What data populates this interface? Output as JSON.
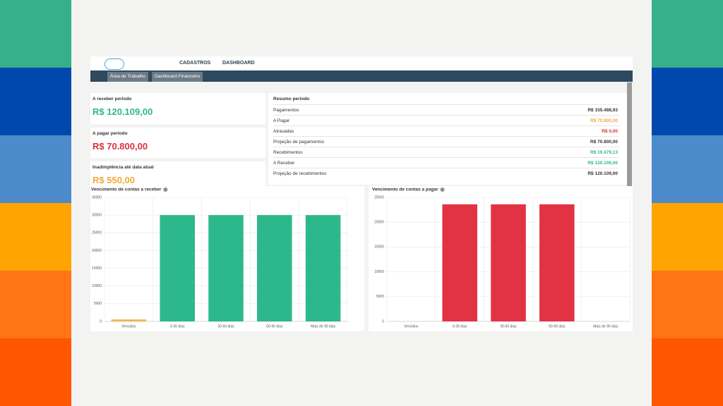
{
  "nav": {
    "items": [
      "CADASTROS",
      "DASHBOARD"
    ]
  },
  "tabs": [
    "Área de Trabalho",
    "Dashboard Financeiro"
  ],
  "cards": [
    {
      "title": "A receber período",
      "value": "R$ 120.109,00"
    },
    {
      "title": "A pagar período",
      "value": "R$ 70.800,00"
    },
    {
      "title": "Inadimplência até data atual",
      "value": "R$ 550,00"
    }
  ],
  "summary": {
    "title": "Resumo período",
    "rows": [
      [
        "Pagamentos",
        "R$ 155.488,93"
      ],
      [
        "A Pagar",
        "R$ 70.800,00"
      ],
      [
        "Atrasadas",
        "R$ 0,00"
      ],
      [
        "Projeção de pagamentos",
        "R$ 70.800,00"
      ],
      [
        "Recebimentos",
        "R$ 19.479,13"
      ],
      [
        "A Receber",
        "R$ 120.109,00"
      ],
      [
        "Projeção de recebimentos",
        "R$ 120.109,00"
      ]
    ]
  },
  "chart_data": [
    {
      "type": "bar",
      "title": "Vencimento de contas a receber",
      "categories": [
        "Vencidos",
        "0-30 dias",
        "30-60 dias",
        "60-90 dias",
        "Mais de 90 dias"
      ],
      "values": [
        550,
        30000,
        30000,
        30000,
        30000
      ],
      "colors": [
        "#f5b350",
        "#2db88b",
        "#2db88b",
        "#2db88b",
        "#2db88b"
      ],
      "ylim": [
        0,
        35000
      ],
      "yticks": [
        0,
        5000,
        10000,
        15000,
        20000,
        25000,
        30000,
        35000
      ],
      "grid": true
    },
    {
      "type": "bar",
      "title": "Vencimento de contas a pagar",
      "categories": [
        "Vencidos",
        "0-30 dias",
        "30-60 dias",
        "60-90 dias",
        "Mais de 90 dias"
      ],
      "values": [
        0,
        23600,
        23600,
        23600,
        0
      ],
      "colors": [
        "#e23344",
        "#e23344",
        "#e23344",
        "#e23344",
        "#e23344"
      ],
      "ylim": [
        0,
        25000
      ],
      "yticks": [
        0,
        5000,
        10000,
        15000,
        20000,
        25000
      ],
      "grid": true
    }
  ]
}
